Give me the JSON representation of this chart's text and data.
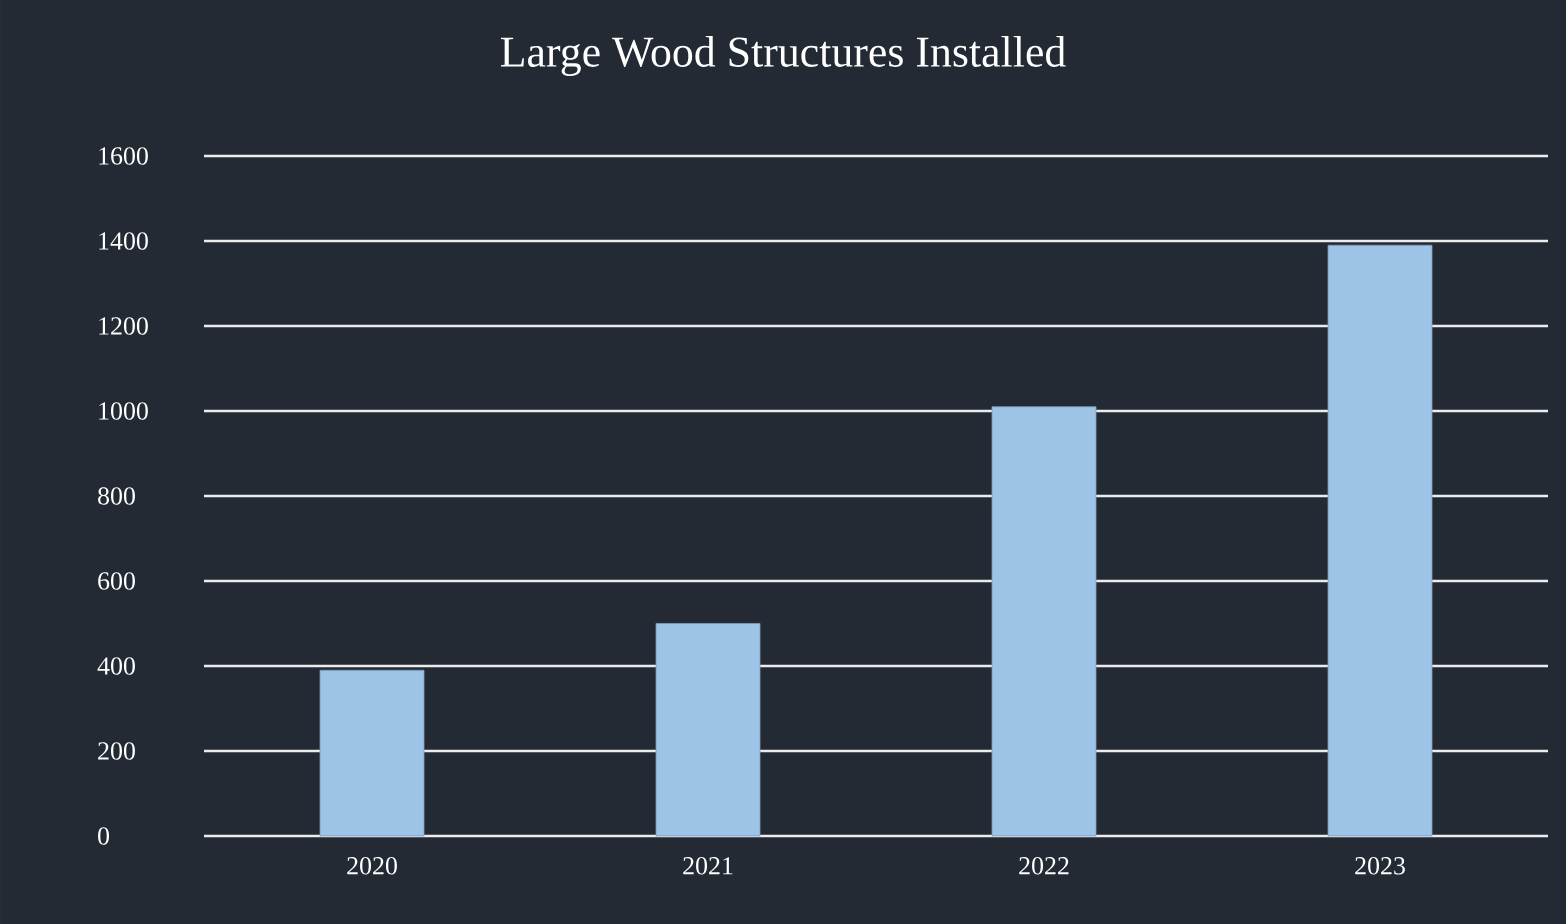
{
  "chart_data": {
    "type": "bar",
    "title": "Large Wood Structures Installed",
    "categories": [
      "2020",
      "2021",
      "2022",
      "2023"
    ],
    "values": [
      390,
      500,
      1010,
      1390
    ],
    "color": "#9dc3e6",
    "ylim": [
      0,
      1600
    ],
    "yticks": [
      0,
      200,
      400,
      600,
      800,
      1000,
      1200,
      1400,
      1600
    ],
    "grid": "y"
  }
}
